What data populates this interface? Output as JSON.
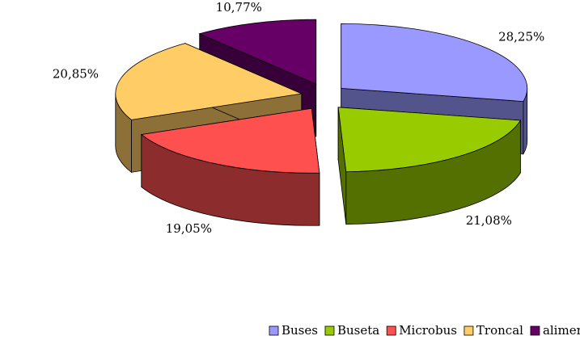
{
  "chart_data": {
    "type": "pie3d",
    "categories": [
      "Buses",
      "Buseta",
      "Microbus",
      "Troncal",
      "alimentadores"
    ],
    "values": [
      28.25,
      21.08,
      19.05,
      20.85,
      10.77
    ],
    "value_labels": [
      "28,25%",
      "21,08%",
      "19,05%",
      "20,85%",
      "10,77%"
    ],
    "colors": [
      "#9999ff",
      "#99cc00",
      "#ff5050",
      "#ffcc66",
      "#660066"
    ],
    "legend": "bottom"
  }
}
